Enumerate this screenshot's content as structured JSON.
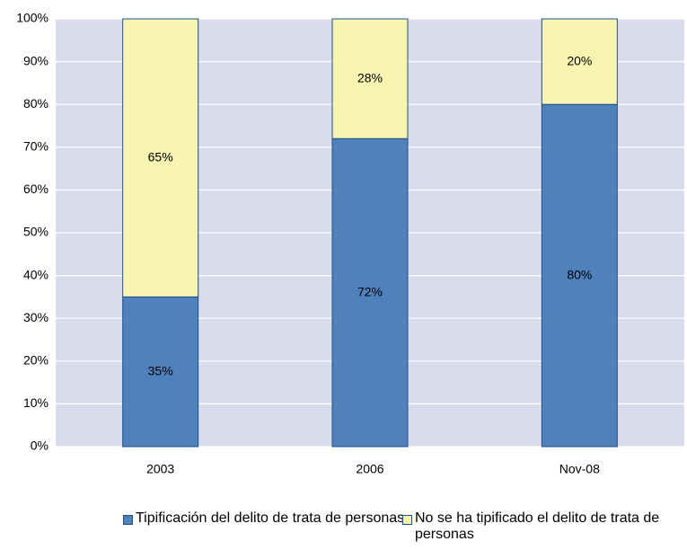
{
  "chart_data": {
    "type": "stacked_bar",
    "categories": [
      "2003",
      "2006",
      "Nov-08"
    ],
    "series": [
      {
        "name": "Tipificación del delito de trata de personas",
        "color": "#4f81bd",
        "values": [
          35,
          72,
          80
        ],
        "value_labels": [
          "35%",
          "72%",
          "80%"
        ]
      },
      {
        "name": "No se ha tipificado el delito de trata de personas",
        "color": "#f8f5b1",
        "values": [
          65,
          28,
          20
        ],
        "value_labels": [
          "65%",
          "28%",
          "20%"
        ]
      }
    ],
    "ylim": [
      0,
      100
    ],
    "yticks": [
      {
        "value": 0,
        "label": "0%"
      },
      {
        "value": 10,
        "label": "10%"
      },
      {
        "value": 20,
        "label": "20%"
      },
      {
        "value": 30,
        "label": "30%"
      },
      {
        "value": 40,
        "label": "40%"
      },
      {
        "value": 50,
        "label": "50%"
      },
      {
        "value": 60,
        "label": "60%"
      },
      {
        "value": 70,
        "label": "70%"
      },
      {
        "value": 80,
        "label": "80%"
      },
      {
        "value": 90,
        "label": "90%"
      },
      {
        "value": 100,
        "label": "100%"
      }
    ],
    "grid": true,
    "legend": "bottom"
  }
}
